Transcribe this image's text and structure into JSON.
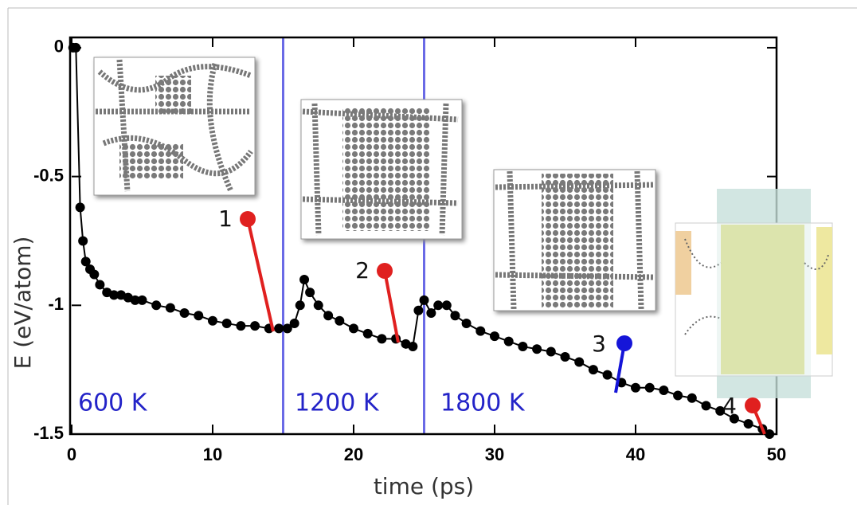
{
  "chart_data": {
    "type": "line",
    "xlabel": "time (ps)",
    "ylabel": "E (eV/atom)",
    "xlim": [
      0,
      50
    ],
    "ylim": [
      -1.5,
      0.04
    ],
    "xticks": [
      0,
      10,
      20,
      30,
      40,
      50
    ],
    "yticks": [
      0,
      -0.5,
      -1,
      -1.5
    ],
    "x": [
      0.1,
      0.3,
      0.6,
      0.8,
      1.0,
      1.3,
      1.6,
      2.0,
      2.5,
      3.0,
      3.5,
      4.0,
      4.5,
      5.0,
      6.0,
      7.0,
      8.0,
      9.0,
      10.0,
      11.0,
      12.0,
      13.0,
      14.0,
      14.7,
      15.3,
      15.8,
      16.2,
      16.5,
      16.9,
      17.5,
      18.2,
      19.0,
      20.0,
      21.0,
      22.0,
      23.0,
      23.7,
      24.2,
      24.6,
      25.0,
      25.5,
      26.0,
      26.6,
      27.2,
      28.0,
      29.0,
      30.0,
      31.0,
      32.0,
      33.0,
      34.0,
      35.0,
      36.0,
      37.0,
      38.0,
      39.0,
      40.0,
      41.0,
      42.0,
      43.0,
      44.0,
      45.0,
      46.0,
      47.0,
      48.0,
      49.0,
      49.5
    ],
    "series": [
      {
        "color": "#000000",
        "values": [
          0.0,
          0.0,
          -0.62,
          -0.75,
          -0.83,
          -0.86,
          -0.88,
          -0.92,
          -0.95,
          -0.96,
          -0.96,
          -0.97,
          -0.98,
          -0.98,
          -1.0,
          -1.01,
          -1.03,
          -1.04,
          -1.06,
          -1.07,
          -1.08,
          -1.08,
          -1.09,
          -1.09,
          -1.09,
          -1.07,
          -1.0,
          -0.9,
          -0.95,
          -1.0,
          -1.04,
          -1.06,
          -1.09,
          -1.11,
          -1.13,
          -1.13,
          -1.15,
          -1.16,
          -1.02,
          -0.98,
          -1.03,
          -1.0,
          -1.0,
          -1.04,
          -1.07,
          -1.1,
          -1.12,
          -1.14,
          -1.16,
          -1.17,
          -1.18,
          -1.2,
          -1.22,
          -1.25,
          -1.27,
          -1.3,
          -1.32,
          -1.32,
          -1.33,
          -1.35,
          -1.36,
          -1.39,
          -1.41,
          -1.44,
          -1.46,
          -1.48,
          -1.5
        ]
      }
    ],
    "boundaries": [
      15,
      25
    ],
    "boundary_color": "#6a6ae6",
    "regions": [
      "600 K",
      "1200 K",
      "1800 K"
    ],
    "annotations": [
      "1",
      "2",
      "3",
      "4"
    ]
  }
}
